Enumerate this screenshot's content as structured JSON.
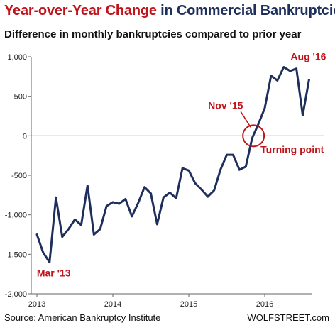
{
  "title": {
    "part1": "Year-over-Year Change",
    "part2": " in Commercial Bankruptcies"
  },
  "subtitle": "Difference in monthly bankruptcies compared to prior year",
  "source": "Source: American Bankruptcy Institute",
  "brand": "WOLFSTREET.com",
  "colors": {
    "title_accent": "#c0141c",
    "title_main": "#1f2f5c",
    "line": "#1f2f5c",
    "zero_line": "#c0141c",
    "annotation": "#c0141c"
  },
  "chart_data": {
    "type": "line",
    "title": "Year-over-Year Change in Commercial Bankruptcies",
    "subtitle": "Difference in monthly bankruptcies compared to prior year",
    "xlabel": "",
    "ylabel": "",
    "ylim": [
      -2000,
      1000
    ],
    "yticks": [
      1000,
      500,
      0,
      -500,
      -1000,
      -1500,
      -2000
    ],
    "ytick_labels": [
      "1,000",
      "500",
      "0",
      "-500",
      "-1,000",
      "-1,500",
      "-2,000"
    ],
    "xticks": [
      "2013",
      "2014",
      "2015",
      "2016"
    ],
    "grid": false,
    "series": [
      {
        "x": [
          "2013-01",
          "2013-02",
          "2013-03",
          "2013-04",
          "2013-05",
          "2013-06",
          "2013-07",
          "2013-08",
          "2013-09",
          "2013-10",
          "2013-11",
          "2013-12",
          "2014-01",
          "2014-02",
          "2014-03",
          "2014-04",
          "2014-05",
          "2014-06",
          "2014-07",
          "2014-08",
          "2014-09",
          "2014-10",
          "2014-11",
          "2014-12",
          "2015-01",
          "2015-02",
          "2015-03",
          "2015-04",
          "2015-05",
          "2015-06",
          "2015-07",
          "2015-08",
          "2015-09",
          "2015-10",
          "2015-11",
          "2015-12",
          "2016-01",
          "2016-02",
          "2016-03",
          "2016-04",
          "2016-05",
          "2016-06",
          "2016-07",
          "2016-08"
        ],
        "values": [
          -1250,
          -1480,
          -1600,
          -780,
          -1280,
          -1180,
          -1060,
          -1130,
          -630,
          -1250,
          -1180,
          -890,
          -840,
          -860,
          -800,
          -1020,
          -850,
          -650,
          -730,
          -1120,
          -780,
          -720,
          -790,
          -410,
          -440,
          -600,
          -680,
          -770,
          -690,
          -430,
          -240,
          -240,
          -430,
          -390,
          -30,
          150,
          350,
          760,
          700,
          870,
          820,
          850,
          260,
          710
        ]
      }
    ],
    "annotations": [
      {
        "text": "Mar '13",
        "x": "2013-03",
        "y": -1600
      },
      {
        "text": "Nov '15",
        "x": "2015-11",
        "y": -30
      },
      {
        "text": "Turning point",
        "x": "2015-11",
        "y": -30
      },
      {
        "text": "Aug '16",
        "x": "2016-08",
        "y": 710
      }
    ],
    "reference_line": {
      "y": 0
    }
  }
}
